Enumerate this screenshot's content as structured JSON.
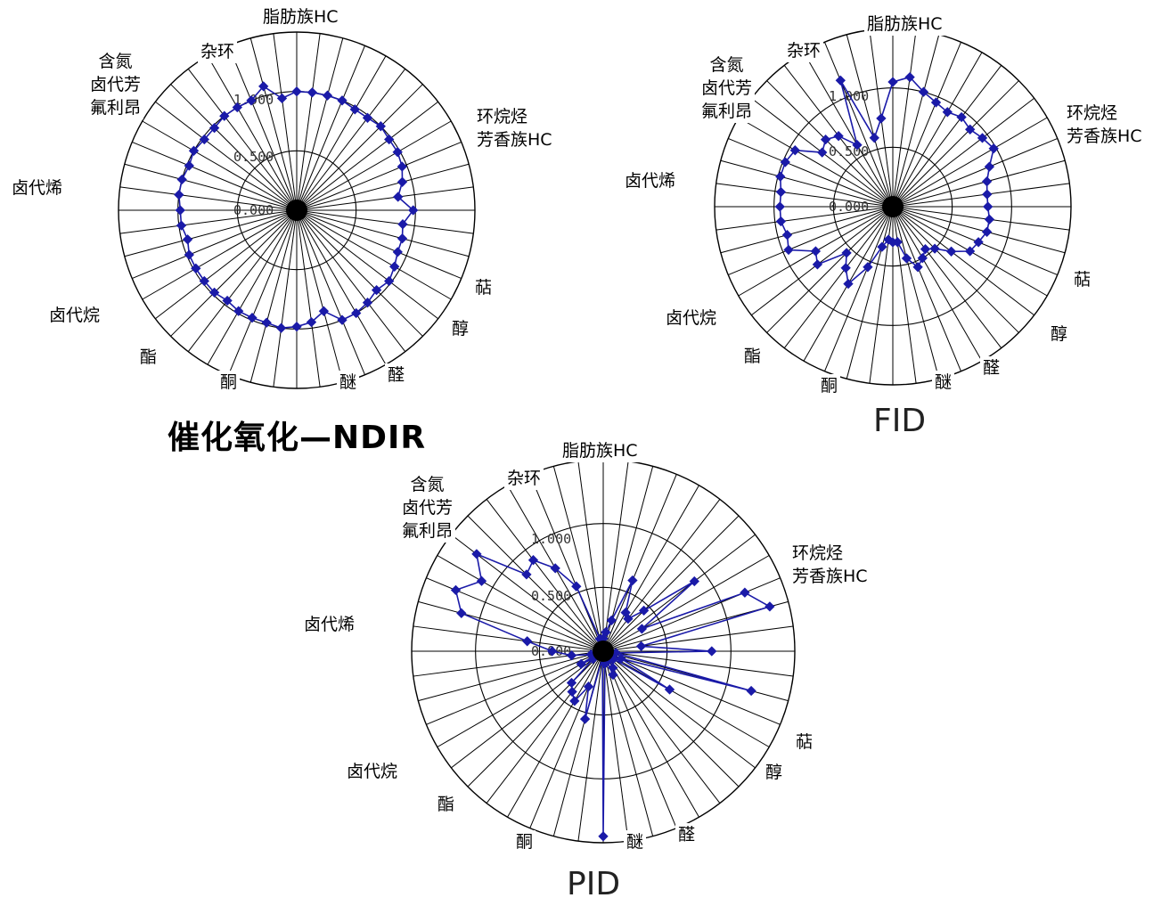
{
  "colors": {
    "series": "#1a1aa8",
    "grid": "#000000"
  },
  "chart_data": [
    {
      "type": "radar",
      "title": "催化氧化—NDIR",
      "rlim": [
        0,
        1.5
      ],
      "r_ticks": [
        "0.000",
        "0.500",
        "1.000"
      ],
      "r_tick_values": [
        0,
        0.5,
        1.0
      ],
      "spoke_count": 48,
      "category_labels": [
        "脂肪族HC",
        "环烷烃\n芳香族HC",
        "萜",
        "醇",
        "醛",
        "醚",
        "酮",
        "酯",
        "卤代烷",
        "卤代烯",
        "含氮\n卤代芳\n氟利昂",
        "杂环"
      ],
      "series": [
        {
          "values": [
            1.0,
            1.0,
            1.0,
            1.0,
            0.98,
            0.98,
            1.0,
            0.98,
            0.98,
            0.96,
            0.92,
            0.86,
            0.98,
            0.9,
            0.92,
            0.92,
            0.95,
            0.98,
            0.95,
            0.98,
            1.0,
            1.0,
            0.88,
            0.95,
            0.98,
            1.0,
            0.98,
            0.98,
            0.98,
            0.96,
            0.98,
            0.98,
            0.98,
            0.98,
            0.95,
            0.98,
            0.98,
            1.0,
            1.0,
            0.98,
            1.0,
            0.98,
            0.98,
            1.0,
            1.0,
            1.0,
            1.08,
            0.95
          ]
        }
      ]
    },
    {
      "type": "radar",
      "title": "FID",
      "rlim": [
        0,
        1.5
      ],
      "r_ticks": [
        "0.000",
        "0.500",
        "1.000"
      ],
      "r_tick_values": [
        0,
        0.5,
        1.0
      ],
      "spoke_count": 48,
      "category_labels": [
        "脂肪族HC",
        "环烷烃\n芳香族HC",
        "萜",
        "醇",
        "醛",
        "醚",
        "酮",
        "酯",
        "卤代烷",
        "卤代烯",
        "含氮\n卤代芳\n氟利昂",
        "杂环"
      ],
      "series": [
        {
          "values": [
            1.05,
            1.1,
            1.0,
            0.95,
            0.92,
            0.95,
            0.92,
            0.95,
            0.98,
            0.88,
            0.82,
            0.8,
            0.8,
            0.82,
            0.82,
            0.78,
            0.75,
            0.62,
            0.5,
            0.45,
            0.5,
            0.55,
            0.45,
            0.3,
            0.3,
            0.28,
            0.35,
            0.55,
            0.75,
            0.65,
            0.55,
            0.8,
            0.75,
            0.95,
            0.92,
            0.95,
            0.95,
            0.95,
            0.98,
            0.98,
            0.95,
            0.75,
            0.8,
            0.75,
            0.6,
            1.15,
            0.6,
            0.75
          ]
        }
      ]
    },
    {
      "type": "radar",
      "title": "PID",
      "rlim": [
        0,
        1.5
      ],
      "r_ticks": [
        "0.000",
        "0.500",
        "1.000"
      ],
      "r_tick_values": [
        0,
        0.5,
        1.0
      ],
      "spoke_count": 48,
      "category_labels": [
        "脂肪族HC",
        "环烷烃\n芳香族HC",
        "萜",
        "醇",
        "醛",
        "醚",
        "酮",
        "酯",
        "卤代烷",
        "卤代烯",
        "含氮\n卤代芳\n氟利昂",
        "杂环"
      ],
      "series": [
        {
          "values": [
            0.1,
            0.15,
            0.25,
            0.6,
            0.35,
            0.32,
            0.45,
            0.9,
            0.35,
            1.2,
            1.35,
            0.3,
            0.85,
            0.1,
            1.2,
            0.15,
            0.6,
            0.1,
            0.05,
            0.08,
            0.15,
            0.2,
            0.05,
            0.1,
            1.45,
            0.05,
            0.55,
            0.3,
            0.45,
            0.4,
            0.35,
            0.1,
            0.2,
            0.05,
            0.1,
            0.25,
            0.4,
            0.6,
            1.15,
            1.25,
            1.1,
            1.25,
            0.85,
            0.9,
            0.75,
            0.55,
            0.1,
            0.05
          ]
        }
      ]
    }
  ],
  "captions": {
    "ndir": "催化氧化—NDIR",
    "fid": "FID",
    "pid": "PID"
  }
}
